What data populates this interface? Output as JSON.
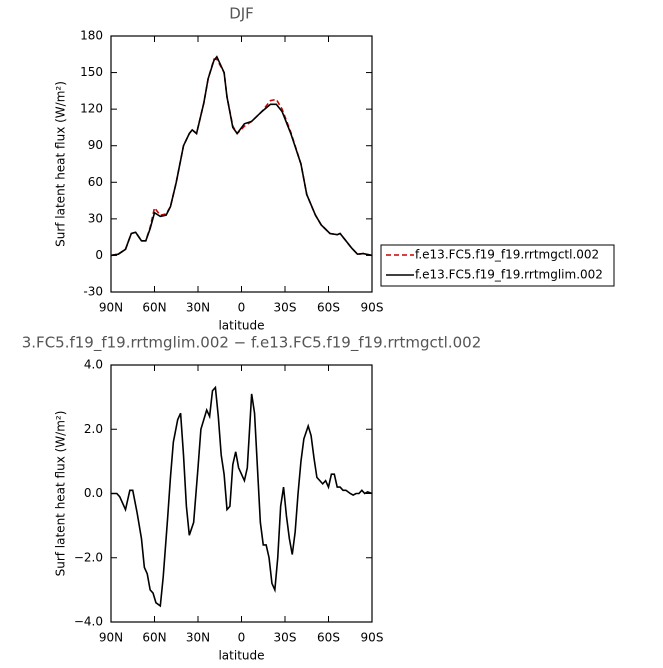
{
  "chart_data": [
    {
      "type": "line",
      "title": "DJF",
      "xlabel": "latitude",
      "ylabel": "Surf latent heat flux (W/m²)",
      "x": [
        90,
        85,
        80,
        76,
        73,
        69,
        66,
        63,
        60,
        56,
        52,
        49,
        45,
        40,
        36,
        34,
        31,
        26,
        23,
        19,
        17,
        12,
        10,
        6,
        3,
        -2,
        -7,
        -14,
        -20,
        -24,
        -28,
        -34,
        -41,
        -45,
        -51,
        -55,
        -61,
        -66,
        -68,
        -72,
        -76,
        -80,
        -84,
        -90
      ],
      "series": [
        {
          "name": "f.e13.FC5.f19_f19.rrtmgctl.002",
          "color": "#cc0000",
          "linestyle": "dashed",
          "values": [
            0,
            1,
            5,
            18,
            19,
            12,
            12,
            23,
            39,
            33,
            34,
            40,
            60,
            90,
            100,
            103,
            100,
            125,
            145,
            161,
            161,
            150,
            130,
            106,
            100,
            106,
            110,
            118,
            127,
            128,
            120,
            101,
            75,
            50,
            33,
            25,
            18,
            17,
            18,
            12,
            6,
            1,
            1.5,
            0
          ]
        },
        {
          "name": "f.e13.FC5.f19_f19.rrtmglim.002",
          "color": "#000000",
          "linestyle": "solid",
          "values": [
            0,
            1,
            5,
            18,
            19,
            12,
            12,
            22,
            35,
            32,
            33,
            40,
            60,
            90,
            100,
            103,
            100,
            125,
            145,
            160,
            163,
            150,
            130,
            105,
            100,
            108,
            110,
            118,
            124,
            124,
            118,
            100,
            75,
            50,
            33,
            25,
            18,
            17,
            18,
            12,
            6,
            1,
            1.5,
            0
          ]
        }
      ],
      "xlim": [
        90,
        -90
      ],
      "xticks": [
        {
          "value": 90,
          "label": "90N"
        },
        {
          "value": 60,
          "label": "60N"
        },
        {
          "value": 30,
          "label": "30N"
        },
        {
          "value": 0,
          "label": "0"
        },
        {
          "value": -30,
          "label": "30S"
        },
        {
          "value": -60,
          "label": "60S"
        },
        {
          "value": -90,
          "label": "90S"
        }
      ],
      "ylim": [
        -30,
        180
      ],
      "yticks": [
        -30,
        0,
        30,
        60,
        90,
        120,
        150,
        180
      ],
      "legend": "right"
    },
    {
      "type": "line",
      "title": "3.FC5.f19_f19.rrtmglim.002 − f.e13.FC5.f19_f19.rrtmgctl.002",
      "xlabel": "latitude",
      "ylabel": "Surf latent heat flux (W/m²)",
      "x": [
        90,
        86,
        84,
        80,
        77,
        75,
        72,
        69,
        67,
        65,
        63,
        61,
        59,
        56,
        54,
        51,
        49,
        47,
        44,
        42,
        40,
        38,
        36,
        33,
        30,
        28,
        26,
        24,
        22,
        20,
        18,
        16,
        14,
        12,
        10,
        8,
        6,
        4,
        2,
        0,
        -2,
        -4,
        -7,
        -9,
        -11,
        -13,
        -15,
        -17,
        -19,
        -21,
        -23,
        -25,
        -27,
        -29,
        -31,
        -33,
        -35,
        -37,
        -39,
        -41,
        -43,
        -46,
        -48,
        -50,
        -52,
        -54,
        -56,
        -58,
        -60,
        -62,
        -64,
        -66,
        -68,
        -70,
        -72,
        -75,
        -77,
        -79,
        -81,
        -83,
        -85,
        -87,
        -90
      ],
      "series": [
        {
          "color": "#000000",
          "linestyle": "solid",
          "values": [
            0,
            0,
            -0.1,
            -0.5,
            0.1,
            0.1,
            -0.6,
            -1.4,
            -2.3,
            -2.5,
            -3.0,
            -3.1,
            -3.4,
            -3.5,
            -2.6,
            -0.8,
            0.5,
            1.6,
            2.3,
            2.5,
            1.2,
            -0.4,
            -1.3,
            -0.9,
            0.8,
            2.0,
            2.3,
            2.6,
            2.4,
            3.2,
            3.3,
            2.4,
            1.2,
            0.6,
            -0.5,
            -0.4,
            0.9,
            1.3,
            0.8,
            0.6,
            0.4,
            0.8,
            3.1,
            2.5,
            0.8,
            -0.9,
            -1.6,
            -1.6,
            -2.0,
            -2.8,
            -3.0,
            -2.0,
            -0.4,
            0.2,
            -0.7,
            -1.4,
            -1.9,
            -1.2,
            0.0,
            1.0,
            1.7,
            2.1,
            1.8,
            1.1,
            0.5,
            0.4,
            0.3,
            0.4,
            0.2,
            0.6,
            0.6,
            0.2,
            0.2,
            0.1,
            0.1,
            0.0,
            -0.05,
            0.0,
            0.0,
            0.1,
            0.0,
            0.05,
            0.0
          ]
        }
      ],
      "xlim": [
        90,
        -90
      ],
      "xticks": [
        {
          "value": 90,
          "label": "90N"
        },
        {
          "value": 60,
          "label": "60N"
        },
        {
          "value": 30,
          "label": "30N"
        },
        {
          "value": 0,
          "label": "0"
        },
        {
          "value": -30,
          "label": "30S"
        },
        {
          "value": -60,
          "label": "60S"
        },
        {
          "value": -90,
          "label": "90S"
        }
      ],
      "ylim": [
        -4,
        4
      ],
      "yticks": [
        {
          "value": -4,
          "label": "−4.0"
        },
        {
          "value": -2,
          "label": "−2.0"
        },
        {
          "value": 0,
          "label": "0.0"
        },
        {
          "value": 2,
          "label": "2.0"
        },
        {
          "value": 4,
          "label": "4.0"
        }
      ]
    }
  ]
}
